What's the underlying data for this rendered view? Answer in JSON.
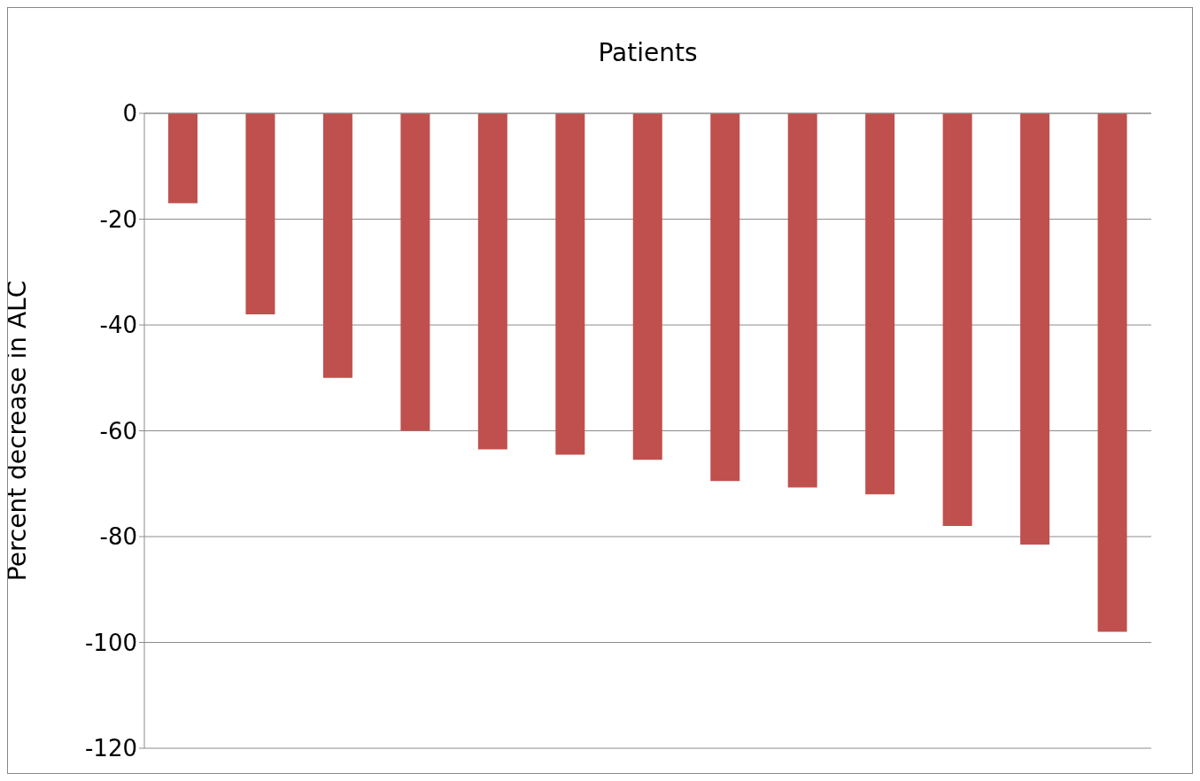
{
  "chart_data": {
    "type": "bar",
    "xlabel": "Patients",
    "ylabel": "Percent decrease in ALC",
    "categories": [
      null,
      null,
      null,
      null,
      null,
      null,
      null,
      null,
      null,
      null,
      null,
      null,
      null
    ],
    "values": [
      -17,
      -38,
      -50,
      -60,
      -63.5,
      -64.5,
      -65.5,
      -69.5,
      -70.7,
      -72,
      -78,
      -81.5,
      -98
    ],
    "color": "#c0504d",
    "ylim": [
      -120,
      0
    ],
    "yticks": [
      -120,
      -100,
      -80,
      -60,
      -40,
      -20,
      0
    ],
    "grid": "y",
    "legend": false
  }
}
